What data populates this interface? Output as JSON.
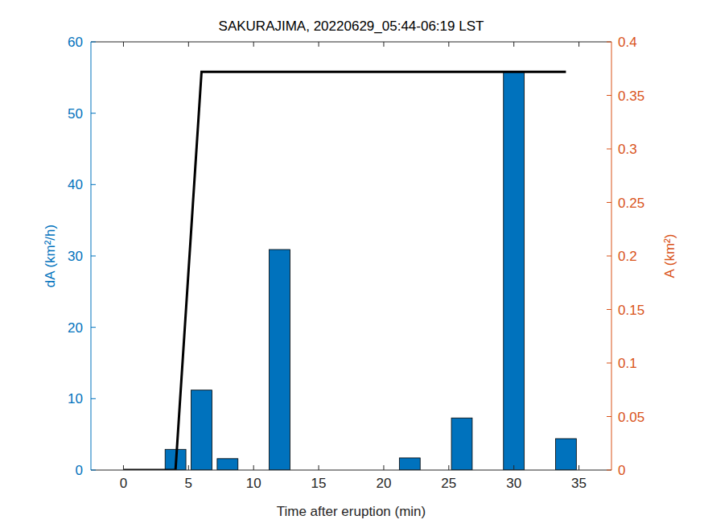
{
  "chart_data": {
    "type": "bar",
    "title": "SAKURAJIMA, 20220629_05:44-06:19 LST",
    "x_label": "Time after eruption (min)",
    "y_label": "dA (km²/h)",
    "y2_label": "A (km²)",
    "x": [
      0,
      2,
      4,
      6,
      8,
      10,
      12,
      14,
      16,
      18,
      20,
      22,
      24,
      26,
      28,
      30,
      32,
      34
    ],
    "xlim": [
      -2.5,
      37.5
    ],
    "xticks": [
      0,
      5,
      10,
      15,
      20,
      25,
      30,
      35
    ],
    "ylim": [
      0,
      60
    ],
    "yticks": [
      0,
      10,
      20,
      30,
      40,
      50,
      60
    ],
    "y2lim": [
      0,
      0.4
    ],
    "y2ticks": [
      0,
      0.05,
      0.1,
      0.15,
      0.2,
      0.25,
      0.3,
      0.35,
      0.4
    ],
    "grid": false,
    "series": [
      {
        "name": "dA",
        "type": "bar",
        "axis": "y",
        "color": "#0072bd",
        "values": [
          0,
          0,
          2.9,
          11.2,
          1.6,
          0,
          30.9,
          0,
          0,
          0,
          0,
          1.7,
          0,
          7.3,
          0,
          55.8,
          0,
          4.4
        ]
      },
      {
        "name": "A",
        "type": "line",
        "axis": "y2",
        "color": "#000000",
        "line_style": "solid",
        "values": [
          0,
          0,
          0,
          0.372,
          0.372,
          0.372,
          0.372,
          0.372,
          0.372,
          0.372,
          0.372,
          0.372,
          0.372,
          0.372,
          0.372,
          0.372,
          0.372,
          0.372
        ]
      }
    ],
    "y_color": "#0072bd",
    "y2_color": "#d95319"
  }
}
